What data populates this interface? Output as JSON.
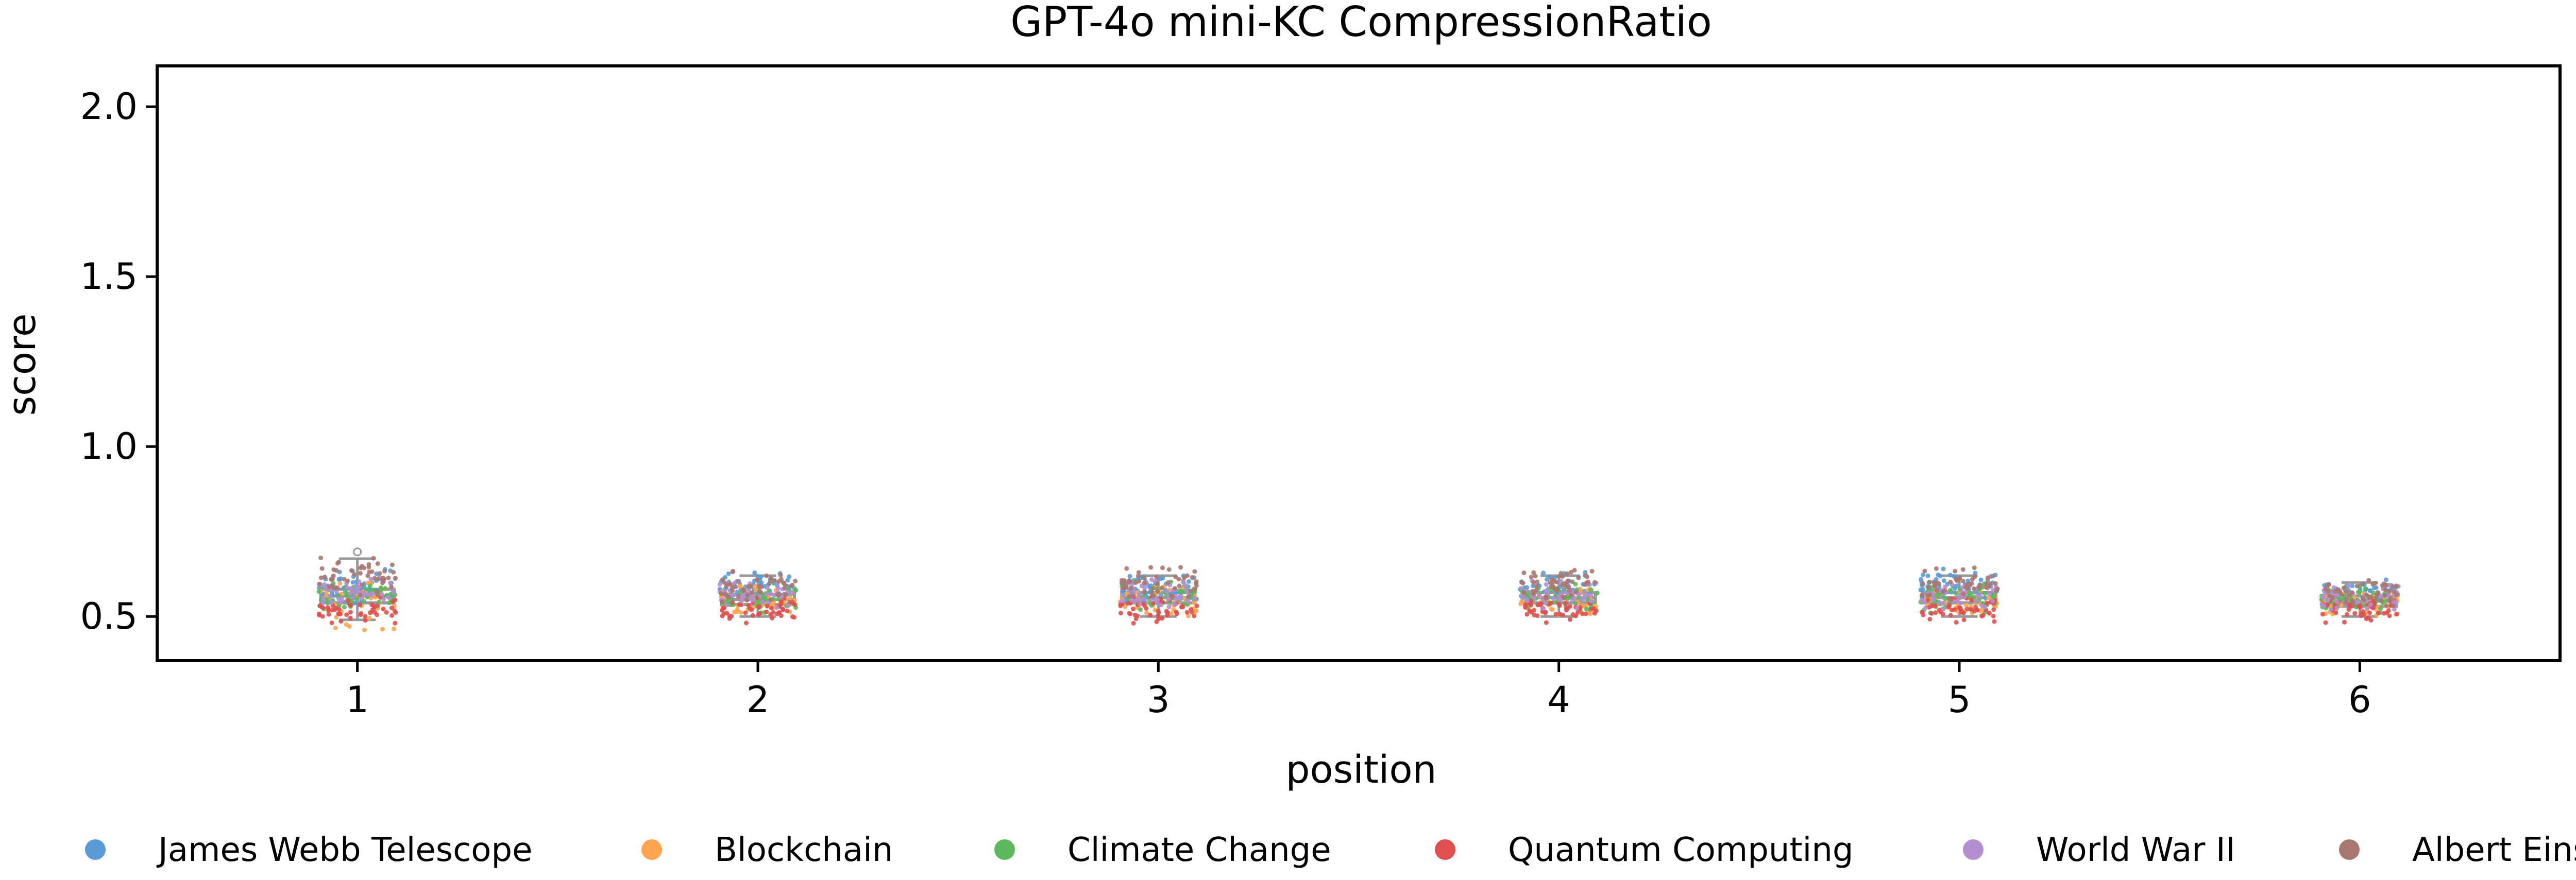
{
  "chart_data": {
    "type": "box-strip",
    "title": "GPT-4o mini-KC CompressionRatio",
    "xlabel": "position",
    "ylabel": "score",
    "categories": [
      "1",
      "2",
      "3",
      "4",
      "5",
      "6"
    ],
    "xlim": [
      0.5,
      6.5
    ],
    "ylim": [
      0.37,
      2.12
    ],
    "yticks": [
      "0.5",
      "1.0",
      "1.5",
      "2.0"
    ],
    "ytick_values": [
      0.5,
      1.0,
      1.5,
      2.0
    ],
    "grid": false,
    "legend_position": "bottom",
    "box_color": "#999999",
    "boxes": [
      {
        "position": "1",
        "whisker_low": 0.49,
        "q1": 0.54,
        "median": 0.56,
        "q3": 0.58,
        "whisker_high": 0.67,
        "outliers": [
          0.69
        ]
      },
      {
        "position": "2",
        "whisker_low": 0.5,
        "q1": 0.535,
        "median": 0.55,
        "q3": 0.565,
        "whisker_high": 0.62,
        "outliers": []
      },
      {
        "position": "3",
        "whisker_low": 0.5,
        "q1": 0.54,
        "median": 0.555,
        "q3": 0.57,
        "whisker_high": 0.62,
        "outliers": []
      },
      {
        "position": "4",
        "whisker_low": 0.5,
        "q1": 0.54,
        "median": 0.555,
        "q3": 0.57,
        "whisker_high": 0.62,
        "outliers": []
      },
      {
        "position": "5",
        "whisker_low": 0.5,
        "q1": 0.54,
        "median": 0.555,
        "q3": 0.57,
        "whisker_high": 0.62,
        "outliers": []
      },
      {
        "position": "6",
        "whisker_low": 0.5,
        "q1": 0.53,
        "median": 0.545,
        "q3": 0.56,
        "whisker_high": 0.6,
        "outliers": []
      }
    ],
    "series": [
      {
        "name": "James Webb Telescope",
        "color": "#5B9BD5",
        "values": [
          [
            0.6,
            0.58,
            0.55,
            0.57,
            0.62,
            0.59
          ],
          [
            0.59,
            0.58,
            0.57,
            0.6,
            0.61,
            0.58
          ],
          [
            0.58,
            0.6,
            0.59,
            0.57,
            0.56,
            0.61
          ],
          [
            0.6,
            0.59,
            0.58,
            0.61,
            0.57,
            0.56
          ],
          [
            0.6,
            0.58,
            0.61,
            0.59,
            0.57,
            0.62
          ],
          [
            0.57,
            0.56,
            0.58,
            0.55,
            0.59,
            0.57
          ]
        ]
      },
      {
        "name": "Blockchain",
        "color": "#FFA54F",
        "values": [
          [
            0.55,
            0.57,
            0.53,
            0.48,
            0.56,
            0.58
          ],
          [
            0.55,
            0.54,
            0.56,
            0.53,
            0.57,
            0.52
          ],
          [
            0.56,
            0.55,
            0.53,
            0.57,
            0.54,
            0.52
          ],
          [
            0.55,
            0.56,
            0.54,
            0.53,
            0.57,
            0.52
          ],
          [
            0.55,
            0.56,
            0.54,
            0.57,
            0.53,
            0.52
          ],
          [
            0.54,
            0.55,
            0.53,
            0.56,
            0.52,
            0.55
          ]
        ]
      },
      {
        "name": "Climate Change",
        "color": "#5CB85C",
        "values": [
          [
            0.56,
            0.58,
            0.55,
            0.57,
            0.54,
            0.59
          ],
          [
            0.55,
            0.57,
            0.56,
            0.54,
            0.58,
            0.53
          ],
          [
            0.57,
            0.56,
            0.58,
            0.55,
            0.54,
            0.59
          ],
          [
            0.56,
            0.57,
            0.55,
            0.58,
            0.54,
            0.53
          ],
          [
            0.56,
            0.57,
            0.55,
            0.58,
            0.54,
            0.53
          ],
          [
            0.55,
            0.56,
            0.54,
            0.57,
            0.53,
            0.55
          ]
        ]
      },
      {
        "name": "Quantum Computing",
        "color": "#E04F4F",
        "values": [
          [
            0.52,
            0.51,
            0.53,
            0.5,
            0.54,
            0.52
          ],
          [
            0.52,
            0.51,
            0.53,
            0.5,
            0.54,
            0.52
          ],
          [
            0.52,
            0.51,
            0.53,
            0.5,
            0.54,
            0.52
          ],
          [
            0.52,
            0.51,
            0.53,
            0.5,
            0.54,
            0.52
          ],
          [
            0.52,
            0.51,
            0.53,
            0.5,
            0.54,
            0.52
          ],
          [
            0.52,
            0.51,
            0.53,
            0.5,
            0.54,
            0.52
          ]
        ]
      },
      {
        "name": "World War II",
        "color": "#B38FD1",
        "values": [
          [
            0.57,
            0.59,
            0.56,
            0.6,
            0.58,
            0.55
          ],
          [
            0.56,
            0.58,
            0.55,
            0.57,
            0.54,
            0.59
          ],
          [
            0.57,
            0.56,
            0.58,
            0.55,
            0.59,
            0.54
          ],
          [
            0.57,
            0.56,
            0.58,
            0.55,
            0.59,
            0.54
          ],
          [
            0.57,
            0.56,
            0.58,
            0.55,
            0.59,
            0.54
          ],
          [
            0.56,
            0.55,
            0.57,
            0.54,
            0.58,
            0.55
          ]
        ]
      },
      {
        "name": "Albert Einstein",
        "color": "#A87870",
        "values": [
          [
            0.62,
            0.64,
            0.6,
            0.66,
            0.58,
            0.61
          ],
          [
            0.58,
            0.6,
            0.62,
            0.57,
            0.59,
            0.56
          ],
          [
            0.59,
            0.61,
            0.63,
            0.57,
            0.58,
            0.6
          ],
          [
            0.59,
            0.6,
            0.61,
            0.57,
            0.58,
            0.62
          ],
          [
            0.59,
            0.61,
            0.63,
            0.57,
            0.58,
            0.6
          ],
          [
            0.57,
            0.58,
            0.59,
            0.56,
            0.55,
            0.57
          ]
        ]
      }
    ]
  }
}
